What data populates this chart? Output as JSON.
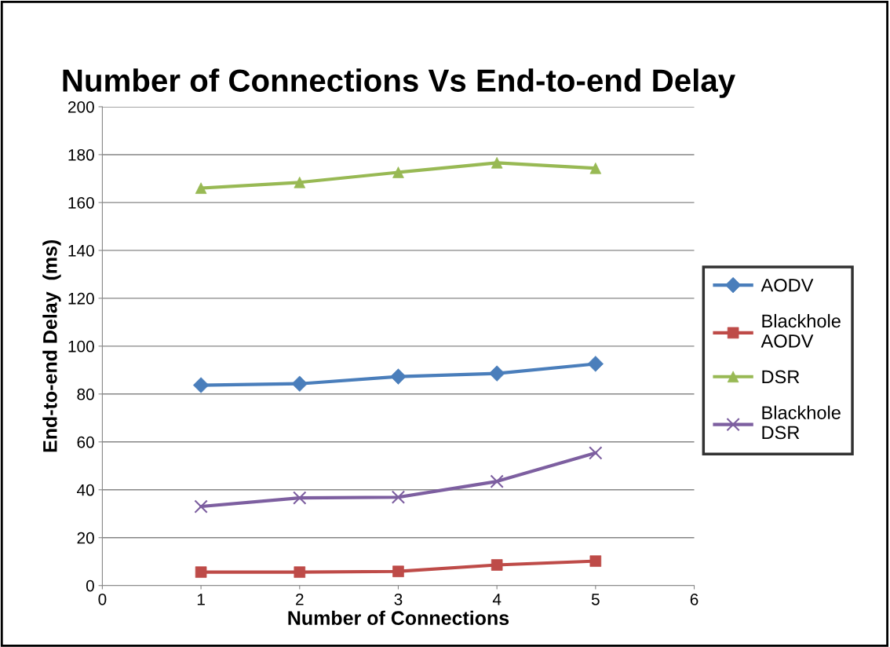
{
  "chart_data": {
    "type": "line",
    "title": "Number of Connections Vs End-to-end Delay",
    "xlabel": "Number of Connections",
    "ylabel": "End-to-end Delay  (ms)",
    "x": [
      1,
      2,
      3,
      4,
      5
    ],
    "series": [
      {
        "name": "AODV",
        "color": "#4a7ebb",
        "marker": "diamond",
        "values": [
          83.7,
          84.3,
          87.3,
          88.6,
          92.6
        ]
      },
      {
        "name": "Blackhole AODV",
        "color": "#be4b48",
        "marker": "square",
        "values": [
          5.6,
          5.6,
          5.9,
          8.6,
          10.2
        ]
      },
      {
        "name": "DSR",
        "color": "#98b954",
        "marker": "triangle",
        "values": [
          166,
          168.4,
          172.6,
          176.6,
          174.3
        ]
      },
      {
        "name": "Blackhole DSR",
        "color": "#7d5fa0",
        "marker": "cross",
        "values": [
          33,
          36.6,
          36.9,
          43.5,
          55.4
        ]
      }
    ],
    "xlim": [
      0,
      6
    ],
    "xticks": [
      0,
      1,
      2,
      3,
      4,
      5,
      6
    ],
    "ylim": [
      0,
      200
    ],
    "yticks": [
      0,
      20,
      40,
      60,
      80,
      100,
      120,
      140,
      160,
      180,
      200
    ],
    "grid": "y",
    "legend": "right",
    "line_style": "solid"
  }
}
